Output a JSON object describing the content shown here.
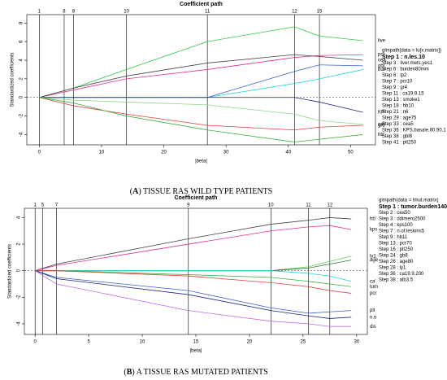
{
  "chart_data": [
    {
      "type": "line",
      "title": "Coefficient path",
      "xlabel": "|beta|",
      "ylabel": "Standardized coefficients",
      "x": [
        0,
        5.5,
        14,
        27,
        41,
        45,
        52
      ],
      "xlim": [
        -2,
        54
      ],
      "xticks": [
        0,
        10,
        20,
        30,
        40,
        50
      ],
      "ylim": [
        -5.1,
        8.9
      ],
      "yticks": [
        -4,
        -2,
        0,
        2,
        4,
        6,
        8
      ],
      "top_ticks": [
        {
          "value": 0,
          "label": "1"
        },
        {
          "value": 4,
          "label": "8"
        },
        {
          "value": 5.5,
          "label": "8"
        },
        {
          "value": 14,
          "label": "10"
        },
        {
          "value": 27,
          "label": "11"
        },
        {
          "value": 41,
          "label": "12"
        },
        {
          "value": 45,
          "label": "15"
        }
      ],
      "series": [
        {
          "name": "live",
          "color": "#2ecc40",
          "values": [
            0,
            1,
            3,
            6,
            7.6,
            6.6,
            6.1
          ]
        },
        {
          "name": "pcr",
          "color": "#e0309b",
          "values": [
            0,
            0.8,
            2,
            3,
            4.3,
            4.5,
            4.6
          ]
        },
        {
          "name": "cea",
          "color": "#444444",
          "values": [
            0,
            1,
            2.3,
            3.7,
            4.6,
            4.4,
            4.0
          ]
        },
        {
          "name": "gbl",
          "color": "#3a5fd0",
          "values": [
            0,
            0,
            0,
            0,
            2.8,
            3.5,
            3.4
          ]
        },
        {
          "name": "bur",
          "color": "#22d3e0",
          "values": [
            0,
            0,
            0,
            0,
            1.5,
            2,
            3
          ]
        },
        {
          "name": "KP",
          "color": "#1a237e",
          "values": [
            0,
            0,
            0,
            0,
            0,
            -0.5,
            -1.6
          ]
        },
        {
          "name": "ca'",
          "color": "#8bd98b",
          "values": [
            0,
            -0.3,
            -0.5,
            -0.8,
            -1.8,
            -2.5,
            -2.9
          ]
        },
        {
          "name": "grd",
          "color": "#e53935",
          "values": [
            0,
            -0.9,
            -1.8,
            -3,
            -3.5,
            -3.2,
            -3
          ]
        },
        {
          "name": "hb'",
          "color": "#3cb043",
          "values": [
            0,
            -0.6,
            -2,
            -3.5,
            -4.8,
            -4.5,
            -4
          ]
        }
      ],
      "glmpath_call": "glmpath(data = lu[x.matrix])",
      "steps": [
        "Step 1 : n.les.10",
        "Step 3 : liver.mets.yes1",
        "Step 6 : burden80mm",
        "Step 6 : lp2",
        "Step 7 : pcr10",
        "Step 9 : gr4",
        "Step 11 : ca19.9.15",
        "Step 13 : smoke1",
        "Step 18 : hb10",
        "Step 21 : n6",
        "Step 29 : age75",
        "Step 33 : cea5",
        "Step 36 : KPS.basale.80.90.1",
        "Step 38 : gbl8",
        "Step 41 : plt250"
      ],
      "caption_label": "A",
      "caption": "TISSUE RAS WILD TYPE PATIENTS"
    },
    {
      "type": "line",
      "title": "Coefficient path",
      "xlabel": "|beta|",
      "ylabel": "Standardized coefficients",
      "x": [
        0,
        2,
        14.3,
        22,
        25.5,
        27.5,
        29.5
      ],
      "xlim": [
        -1,
        31
      ],
      "xticks": [
        0,
        5,
        10,
        15,
        20,
        25,
        30
      ],
      "ylim": [
        -4.8,
        4.7
      ],
      "yticks": [
        -4,
        -2,
        0,
        2,
        4
      ],
      "top_ticks": [
        {
          "value": 0,
          "label": "1"
        },
        {
          "value": 0.7,
          "label": "5"
        },
        {
          "value": 2,
          "label": "7"
        },
        {
          "value": 14.3,
          "label": "9"
        },
        {
          "value": 22,
          "label": "10"
        },
        {
          "value": 25.5,
          "label": "11"
        },
        {
          "value": 27.5,
          "label": "12"
        }
      ],
      "series": [
        {
          "name": "hb'",
          "color": "#444444",
          "values": [
            0,
            0.5,
            2.4,
            3.5,
            3.8,
            4,
            3.9
          ]
        },
        {
          "name": "kps",
          "color": "#e0309b",
          "values": [
            0,
            0.4,
            2,
            3,
            3.3,
            3.4,
            3.1
          ]
        },
        {
          "name": "ly1",
          "color": "#5fd35f",
          "values": [
            0,
            0,
            0,
            0,
            0.3,
            0.7,
            1.1
          ]
        },
        {
          "name": "age",
          "color": "#2e7d32",
          "values": [
            0,
            0,
            0,
            0,
            0.2,
            0.5,
            0.8
          ]
        },
        {
          "name": "ca'",
          "color": "#22d3e0",
          "values": [
            0,
            0,
            0,
            0,
            -0.2,
            -0.4,
            -0.8
          ]
        },
        {
          "name": "tum",
          "color": "#3cb043",
          "values": [
            0,
            0,
            -0.3,
            -0.5,
            -0.8,
            -1,
            -1.2
          ]
        },
        {
          "name": "pcr",
          "color": "#e53935",
          "values": [
            0,
            0,
            -0.4,
            -0.9,
            -1.2,
            -1.5,
            -1.7
          ]
        },
        {
          "name": "plt",
          "color": "#3a5fd0",
          "values": [
            0,
            -0.5,
            -1.5,
            -2.8,
            -3.2,
            -3.1,
            -3
          ]
        },
        {
          "name": "n.o",
          "color": "#1a237e",
          "values": [
            0,
            -0.6,
            -1.8,
            -3,
            -3.4,
            -3.6,
            -3.5
          ]
        },
        {
          "name": "dis",
          "color": "#c06ee0",
          "values": [
            0,
            -1,
            -3,
            -3.8,
            -4,
            -4.2,
            -4.2
          ]
        }
      ],
      "glmpath_call": "glmpath(data = tmut.matrix)",
      "steps": [
        "Step 1 : tumor.burden140",
        "Step 2 : cea50",
        "Step 3 : ddimero2500",
        "Step 4 : kps100",
        "Step 7 : n.of.lesions5",
        "Step 9 : hb11",
        "Step 13 : pcr70",
        "Step 16 : plt250",
        "Step 24 : gb8",
        "Step 26 : age80",
        "Step 28 : ly1",
        "Step 36 : ca19.9.200",
        "Step 38 : alb3.5"
      ],
      "caption_label": "B",
      "caption": "A TISSUE RAS MUTATED PATIENTS"
    }
  ]
}
